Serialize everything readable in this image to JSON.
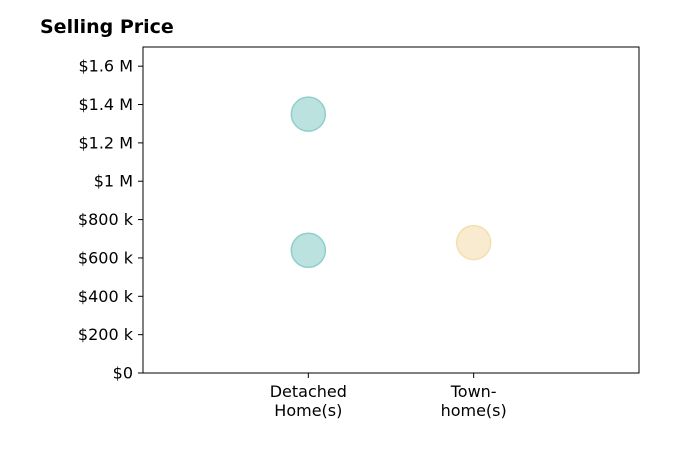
{
  "chart_data": {
    "type": "scatter",
    "title": "Selling Price",
    "xlabel": "",
    "ylabel": "",
    "categories": [
      {
        "lines": [
          "Detached",
          "Home(s)"
        ]
      },
      {
        "lines": [
          "Town-",
          "home(s)"
        ]
      }
    ],
    "xlim": [
      -1,
      2
    ],
    "ylim": [
      0,
      1700000
    ],
    "y_ticks": [
      {
        "value": 0,
        "label": "$0"
      },
      {
        "value": 200000,
        "label": "$200 k"
      },
      {
        "value": 400000,
        "label": "$400 k"
      },
      {
        "value": 600000,
        "label": "$600 k"
      },
      {
        "value": 800000,
        "label": "$800 k"
      },
      {
        "value": 1000000,
        "label": "$1 M"
      },
      {
        "value": 1200000,
        "label": "$1.2 M"
      },
      {
        "value": 1400000,
        "label": "$1.4 M"
      },
      {
        "value": 1600000,
        "label": "$1.6 M"
      }
    ],
    "points": [
      {
        "category_index": 0,
        "y": 1350000,
        "color": "#8fcfca"
      },
      {
        "category_index": 0,
        "y": 640000,
        "color": "#8fcfca"
      },
      {
        "category_index": 1,
        "y": 680000,
        "color": "#f5deb0"
      }
    ],
    "grid": false,
    "legend": "none"
  }
}
